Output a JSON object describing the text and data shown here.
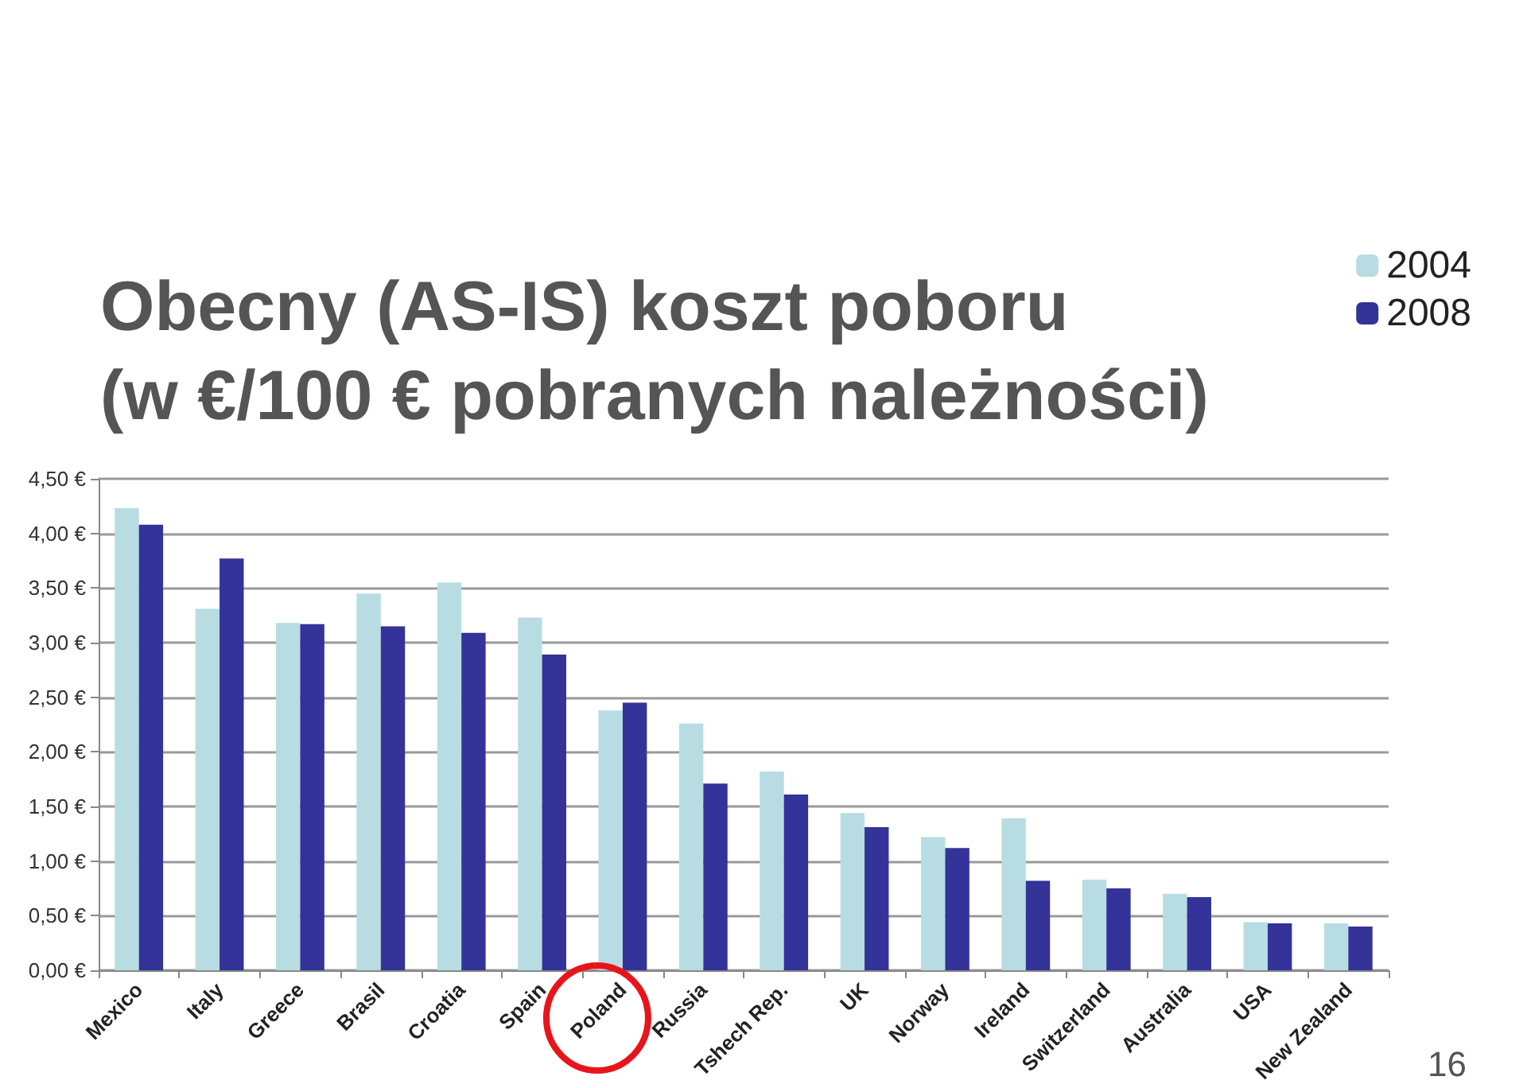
{
  "chart_data": {
    "type": "bar",
    "title": "Obecny (AS-IS) koszt poboru\n(w €/100 € pobranych należności)",
    "categories": [
      "Mexico",
      "Italy",
      "Greece",
      "Brasil",
      "Croatia",
      "Spain",
      "Poland",
      "Russia",
      "Tshech Rep.",
      "UK",
      "Norway",
      "Ireland",
      "Switzerland",
      "Australia",
      "USA",
      "New Zealand"
    ],
    "series": [
      {
        "name": "2004",
        "color": "#b7dde2",
        "values": [
          4.23,
          3.31,
          3.18,
          3.45,
          3.55,
          3.23,
          2.38,
          2.26,
          1.82,
          1.44,
          1.22,
          1.39,
          0.83,
          0.7,
          0.44,
          0.43
        ]
      },
      {
        "name": "2008",
        "color": "#333399",
        "values": [
          4.08,
          3.77,
          3.17,
          3.15,
          3.09,
          2.89,
          2.45,
          1.71,
          1.61,
          1.31,
          1.12,
          0.82,
          0.75,
          0.67,
          0.43,
          0.4
        ]
      }
    ],
    "ylim": [
      0,
      4.5
    ],
    "yticks": [
      {
        "value": 0,
        "label": "0,00 €"
      },
      {
        "value": 0.5,
        "label": "0,50 €"
      },
      {
        "value": 1,
        "label": "1,00 €"
      },
      {
        "value": 1.5,
        "label": "1,50 €"
      },
      {
        "value": 2,
        "label": "2,00 €"
      },
      {
        "value": 2.5,
        "label": "2,50 €"
      },
      {
        "value": 3,
        "label": "3,00 €"
      },
      {
        "value": 3.5,
        "label": "3,50 €"
      },
      {
        "value": 4,
        "label": "4,00 €"
      },
      {
        "value": 4.5,
        "label": "4,50 €"
      }
    ],
    "grid": "y",
    "legend": "top right",
    "annotations": [
      "16"
    ]
  }
}
